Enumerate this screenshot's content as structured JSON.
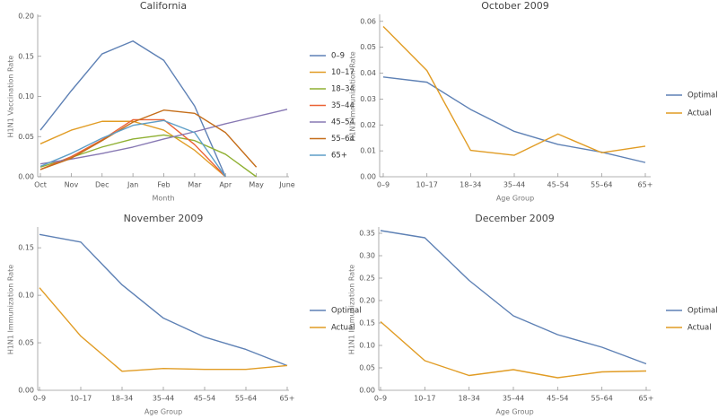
{
  "chart_data": [
    {
      "type": "line",
      "title": "California",
      "x_label": "Month",
      "y_label": "H1N1 Vaccination Rate",
      "categories": [
        "Oct",
        "Nov",
        "Dec",
        "Jan",
        "Feb",
        "Mar",
        "Apr",
        "May",
        "June"
      ],
      "ylim": [
        0,
        0.2
      ],
      "yticks": [
        {
          "value": 0,
          "label": "0.00"
        },
        0.05,
        {
          "value": 0.1,
          "label": "0.10"
        },
        0.15,
        {
          "value": 0.2,
          "label": "0.20"
        }
      ],
      "legend": "right",
      "series": [
        {
          "name": "0–9",
          "color": "#5e81b5",
          "values": [
            0.058,
            0.107,
            0.153,
            0.169,
            0.145,
            0.088,
            0.0,
            null,
            null
          ]
        },
        {
          "name": "10–17",
          "color": "#e19c24",
          "values": [
            0.041,
            0.058,
            0.069,
            0.069,
            0.058,
            0.033,
            0.0,
            null,
            null
          ]
        },
        {
          "name": "18–34",
          "color": "#8fb032",
          "values": [
            0.012,
            0.024,
            0.037,
            0.047,
            0.052,
            0.045,
            0.028,
            0.0,
            null
          ]
        },
        {
          "name": "35–44",
          "color": "#eb6235",
          "values": [
            0.009,
            0.025,
            0.046,
            0.071,
            0.071,
            0.04,
            0.0,
            null,
            null
          ]
        },
        {
          "name": "45–54",
          "color": "#8778b3",
          "values": [
            0.016,
            0.022,
            0.029,
            0.037,
            0.047,
            0.056,
            0.066,
            0.075,
            0.084
          ]
        },
        {
          "name": "55–64",
          "color": "#c56e1a",
          "values": [
            0.009,
            0.023,
            0.045,
            0.068,
            0.083,
            0.079,
            0.055,
            0.012,
            null
          ]
        },
        {
          "name": "65+",
          "color": "#5d9ec7",
          "values": [
            0.013,
            0.029,
            0.048,
            0.064,
            0.07,
            0.055,
            0.0,
            null,
            null
          ]
        }
      ]
    },
    {
      "type": "line",
      "title": "October 2009",
      "x_label": "Age Group",
      "y_label": "H1N1 Immunization Rate",
      "categories": [
        "0–9",
        "10–17",
        "18–34",
        "35–44",
        "45–54",
        "55–64",
        "65+"
      ],
      "ylim": [
        0,
        0.062
      ],
      "yticks": [
        {
          "value": 0,
          "label": "0.00"
        },
        0.01,
        0.02,
        0.03,
        0.04,
        0.05,
        0.06
      ],
      "legend": "right",
      "series": [
        {
          "name": "Optimal",
          "color": "#5e81b5",
          "values": [
            0.0385,
            0.0365,
            0.026,
            0.0175,
            0.0125,
            0.0095,
            0.0055
          ]
        },
        {
          "name": "Actual",
          "color": "#e19c24",
          "values": [
            0.058,
            0.041,
            0.0102,
            0.0083,
            0.0165,
            0.0093,
            0.0118
          ]
        }
      ]
    },
    {
      "type": "line",
      "title": "November 2009",
      "x_label": "Age Group",
      "y_label": "H1N1 Immunization Rate",
      "categories": [
        "0–9",
        "10–17",
        "18–34",
        "35–44",
        "45–54",
        "55–64",
        "65+"
      ],
      "ylim": [
        0,
        0.17
      ],
      "yticks": [
        {
          "value": 0,
          "label": "0.00"
        },
        0.05,
        {
          "value": 0.1,
          "label": "0.10"
        },
        0.15
      ],
      "legend": "right",
      "series": [
        {
          "name": "Optimal",
          "color": "#5e81b5",
          "values": [
            0.164,
            0.156,
            0.111,
            0.076,
            0.056,
            0.043,
            0.026
          ]
        },
        {
          "name": "Actual",
          "color": "#e19c24",
          "values": [
            0.108,
            0.057,
            0.02,
            0.023,
            0.022,
            0.022,
            0.026
          ]
        }
      ]
    },
    {
      "type": "line",
      "title": "December 2009",
      "x_label": "Age Group",
      "y_label": "H1N1 Immunization Rate",
      "categories": [
        "0–9",
        "10–17",
        "18–34",
        "35–44",
        "45–54",
        "55–64",
        "65+"
      ],
      "ylim": [
        0,
        0.36
      ],
      "yticks": [
        {
          "value": 0,
          "label": "0.00"
        },
        0.05,
        {
          "value": 0.1,
          "label": "0.10"
        },
        0.15,
        {
          "value": 0.2,
          "label": "0.20"
        },
        0.25,
        {
          "value": 0.3,
          "label": "0.30"
        },
        0.35
      ],
      "legend": "right",
      "series": [
        {
          "name": "Optimal",
          "color": "#5e81b5",
          "values": [
            0.356,
            0.34,
            0.245,
            0.166,
            0.124,
            0.096,
            0.059
          ]
        },
        {
          "name": "Actual",
          "color": "#e19c24",
          "values": [
            0.153,
            0.066,
            0.033,
            0.046,
            0.028,
            0.041,
            0.043
          ]
        }
      ]
    }
  ]
}
